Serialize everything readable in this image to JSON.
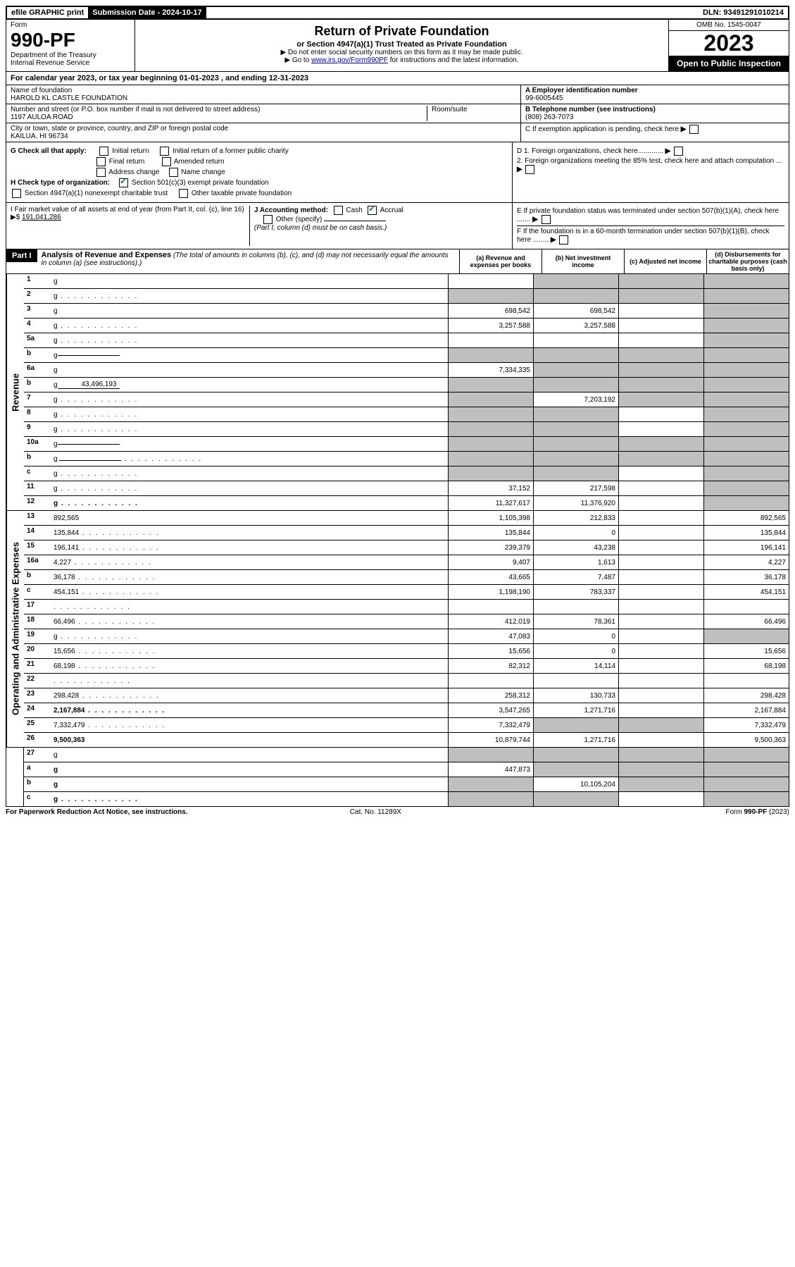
{
  "top_bar": {
    "efile": "efile GRAPHIC print",
    "sub_date_label": "Submission Date - 2024-10-17",
    "dln": "DLN: 93491291010214"
  },
  "header": {
    "form_label": "Form",
    "form_num": "990-PF",
    "dept": "Department of the Treasury",
    "irs": "Internal Revenue Service",
    "title": "Return of Private Foundation",
    "subtitle": "or Section 4947(a)(1) Trust Treated as Private Foundation",
    "instr1": "▶ Do not enter social security numbers on this form as it may be made public.",
    "instr2_pre": "▶ Go to ",
    "instr2_link": "www.irs.gov/Form990PF",
    "instr2_post": " for instructions and the latest information.",
    "omb": "OMB No. 1545-0047",
    "year": "2023",
    "open": "Open to Public Inspection"
  },
  "cal_year": "For calendar year 2023, or tax year beginning 01-01-2023           , and ending 12-31-2023",
  "entity": {
    "name_label": "Name of foundation",
    "name": "HAROLD KL CASTLE FOUNDATION",
    "addr_label": "Number and street (or P.O. box number if mail is not delivered to street address)",
    "addr": "1197 AULOA ROAD",
    "room_label": "Room/suite",
    "city_label": "City or town, state or province, country, and ZIP or foreign postal code",
    "city": "KAILUA, HI  96734",
    "ein_label": "A Employer identification number",
    "ein": "99-6005445",
    "tel_label": "B Telephone number (see instructions)",
    "tel": "(808) 263-7073",
    "c_label": "C If exemption application is pending, check here"
  },
  "checks": {
    "g_label": "G Check all that apply:",
    "g_opts": [
      "Initial return",
      "Initial return of a former public charity",
      "Final return",
      "Amended return",
      "Address change",
      "Name change"
    ],
    "h_label": "H Check type of organization:",
    "h1": "Section 501(c)(3) exempt private foundation",
    "h2": "Section 4947(a)(1) nonexempt charitable trust",
    "h3": "Other taxable private foundation",
    "i_label": "I Fair market value of all assets at end of year (from Part II, col. (c), line 16) ▶$ ",
    "i_val": "191,041,286",
    "j_label": "J Accounting method:",
    "j_opts": [
      "Cash",
      "Accrual"
    ],
    "j_other": "Other (specify)",
    "j_note": "(Part I, column (d) must be on cash basis.)",
    "d1": "D 1. Foreign organizations, check here.............",
    "d2": "2. Foreign organizations meeting the 85% test, check here and attach computation ...",
    "e": "E  If private foundation status was terminated under section 507(b)(1)(A), check here .......",
    "f": "F  If the foundation is in a 60-month termination under section 507(b)(1)(B), check here ........"
  },
  "part1": {
    "label": "Part I",
    "title": "Analysis of Revenue and Expenses",
    "note": "(The total of amounts in columns (b), (c), and (d) may not necessarily equal the amounts in column (a) (see instructions).)",
    "col_a": "(a)   Revenue and expenses per books",
    "col_b": "(b)   Net investment income",
    "col_c": "(c)   Adjusted net income",
    "col_d": "(d)   Disbursements for charitable purposes (cash basis only)"
  },
  "side_labels": {
    "revenue": "Revenue",
    "expenses": "Operating and Administrative Expenses"
  },
  "rows": [
    {
      "n": "1",
      "d": "g",
      "a": "",
      "b": "g",
      "c": "g"
    },
    {
      "n": "2",
      "d": "g",
      "a": "g",
      "b": "g",
      "c": "g",
      "dots": true
    },
    {
      "n": "3",
      "d": "g",
      "a": "698,542",
      "b": "698,542",
      "c": ""
    },
    {
      "n": "4",
      "d": "g",
      "a": "3,257,588",
      "b": "3,257,588",
      "c": "",
      "dots": true
    },
    {
      "n": "5a",
      "d": "g",
      "a": "",
      "b": "",
      "c": "",
      "dots": true
    },
    {
      "n": "b",
      "d": "g",
      "a": "g",
      "b": "g",
      "c": "g",
      "inline": ""
    },
    {
      "n": "6a",
      "d": "g",
      "a": "7,334,335",
      "b": "g",
      "c": "g"
    },
    {
      "n": "b",
      "d": "g",
      "a": "g",
      "b": "g",
      "c": "g",
      "inline": "43,496,193"
    },
    {
      "n": "7",
      "d": "g",
      "a": "g",
      "b": "7,203,192",
      "c": "g",
      "dots": true
    },
    {
      "n": "8",
      "d": "g",
      "a": "g",
      "b": "g",
      "c": "",
      "dots": true
    },
    {
      "n": "9",
      "d": "g",
      "a": "g",
      "b": "g",
      "c": "",
      "dots": true
    },
    {
      "n": "10a",
      "d": "g",
      "a": "g",
      "b": "g",
      "c": "g",
      "inline": ""
    },
    {
      "n": "b",
      "d": "g",
      "a": "g",
      "b": "g",
      "c": "g",
      "inline": "",
      "dots": true
    },
    {
      "n": "c",
      "d": "g",
      "a": "g",
      "b": "g",
      "c": "",
      "dots": true
    },
    {
      "n": "11",
      "d": "g",
      "a": "37,152",
      "b": "217,598",
      "c": "",
      "dots": true
    },
    {
      "n": "12",
      "d": "g",
      "a": "11,327,617",
      "b": "11,376,920",
      "c": "",
      "bold": true,
      "dots": true
    }
  ],
  "exp_rows": [
    {
      "n": "13",
      "d": "892,565",
      "a": "1,105,398",
      "b": "212,833",
      "c": ""
    },
    {
      "n": "14",
      "d": "135,844",
      "a": "135,844",
      "b": "0",
      "c": "",
      "dots": true
    },
    {
      "n": "15",
      "d": "196,141",
      "a": "239,379",
      "b": "43,238",
      "c": "",
      "dots": true
    },
    {
      "n": "16a",
      "d": "4,227",
      "a": "9,407",
      "b": "1,613",
      "c": "",
      "dots": true
    },
    {
      "n": "b",
      "d": "36,178",
      "a": "43,665",
      "b": "7,487",
      "c": "",
      "dots": true
    },
    {
      "n": "c",
      "d": "454,151",
      "a": "1,198,190",
      "b": "783,337",
      "c": "",
      "dots": true
    },
    {
      "n": "17",
      "d": "",
      "a": "",
      "b": "",
      "c": "",
      "dots": true
    },
    {
      "n": "18",
      "d": "66,496",
      "a": "412,019",
      "b": "78,361",
      "c": "",
      "dots": true
    },
    {
      "n": "19",
      "d": "g",
      "a": "47,083",
      "b": "0",
      "c": "",
      "dots": true
    },
    {
      "n": "20",
      "d": "15,656",
      "a": "15,656",
      "b": "0",
      "c": "",
      "dots": true
    },
    {
      "n": "21",
      "d": "68,198",
      "a": "82,312",
      "b": "14,114",
      "c": "",
      "dots": true
    },
    {
      "n": "22",
      "d": "",
      "a": "",
      "b": "",
      "c": "",
      "dots": true
    },
    {
      "n": "23",
      "d": "298,428",
      "a": "258,312",
      "b": "130,733",
      "c": "",
      "dots": true
    },
    {
      "n": "24",
      "d": "2,167,884",
      "a": "3,547,265",
      "b": "1,271,716",
      "c": "",
      "bold": true,
      "dots": true
    },
    {
      "n": "25",
      "d": "7,332,479",
      "a": "7,332,479",
      "b": "g",
      "c": "g",
      "dots": true
    },
    {
      "n": "26",
      "d": "9,500,363",
      "a": "10,879,744",
      "b": "1,271,716",
      "c": "",
      "bold": true
    }
  ],
  "final_rows": [
    {
      "n": "27",
      "d": "g",
      "a": "g",
      "b": "g",
      "c": "g"
    },
    {
      "n": "a",
      "d": "g",
      "a": "447,873",
      "b": "g",
      "c": "g",
      "bold": true
    },
    {
      "n": "b",
      "d": "g",
      "a": "g",
      "b": "10,105,204",
      "c": "g",
      "bold": true
    },
    {
      "n": "c",
      "d": "g",
      "a": "g",
      "b": "g",
      "c": "",
      "bold": true,
      "dots": true
    }
  ],
  "footer": {
    "left": "For Paperwork Reduction Act Notice, see instructions.",
    "mid": "Cat. No. 11289X",
    "right": "Form 990-PF (2023)"
  }
}
